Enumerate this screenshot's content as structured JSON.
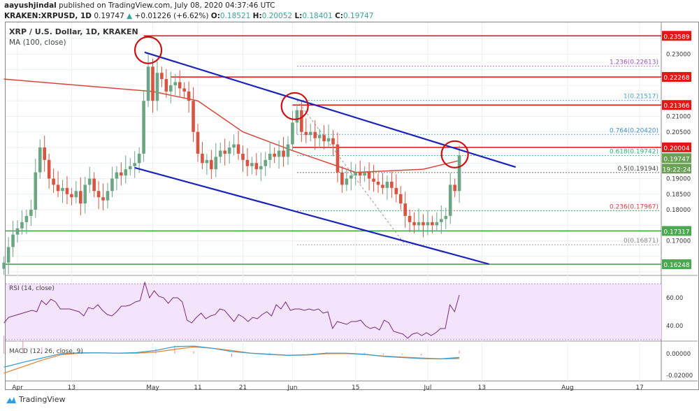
{
  "header": {
    "author": "aayushjindal",
    "published": "published on TradingView.com, July 08, 2020 04:37:46 UTC",
    "symbol": "KRAKEN:XRPUSD, 1D",
    "last": "0.19747",
    "change": "+0.01226 (+6.62%)",
    "o_label": "O:",
    "o": "0.18521",
    "h_label": "H:",
    "h": "0.20052",
    "l_label": "L:",
    "l": "0.18401",
    "c_label": "C:",
    "c": "0.19747"
  },
  "legend": {
    "title": "XRP / U.S. Dollar, 1D, KRAKEN",
    "ma": "MA (100, close)",
    "rsi": "RSI (14, close)",
    "macd": "MACD (12, 26, close, 9)"
  },
  "footer": {
    "brand": "TradingView"
  },
  "colors": {
    "up": "#6ba583",
    "down": "#d75442",
    "ma": "#d9473a",
    "trend": "#1a24b8",
    "resistance": "#e01010",
    "support": "#3e9e4a",
    "circle": "#cc1010",
    "rsi": "#7b2a7b",
    "rsi_bg": "#f3e3fb",
    "macd": "#3a9fd0",
    "signal": "#e88a3a"
  },
  "chart_data": {
    "type": "candlestick",
    "title": "XRP / U.S. Dollar, 1D, KRAKEN",
    "start_day_offset": -3,
    "day_zero": "Apr 1",
    "closes": [
      0.163,
      0.168,
      0.172,
      0.174,
      0.176,
      0.178,
      0.18,
      0.192,
      0.2,
      0.196,
      0.19,
      0.188,
      0.186,
      0.187,
      0.185,
      0.184,
      0.186,
      0.182,
      0.188,
      0.19,
      0.186,
      0.184,
      0.183,
      0.186,
      0.19,
      0.192,
      0.191,
      0.193,
      0.194,
      0.195,
      0.198,
      0.215,
      0.226,
      0.215,
      0.224,
      0.222,
      0.218,
      0.22,
      0.221,
      0.219,
      0.218,
      0.215,
      0.205,
      0.198,
      0.195,
      0.196,
      0.193,
      0.197,
      0.199,
      0.198,
      0.2,
      0.201,
      0.198,
      0.196,
      0.194,
      0.195,
      0.193,
      0.194,
      0.196,
      0.198,
      0.197,
      0.199,
      0.197,
      0.201,
      0.208,
      0.212,
      0.205,
      0.204,
      0.205,
      0.203,
      0.204,
      0.202,
      0.203,
      0.201,
      0.192,
      0.188,
      0.19,
      0.191,
      0.192,
      0.191,
      0.192,
      0.19,
      0.189,
      0.188,
      0.187,
      0.189,
      0.187,
      0.185,
      0.182,
      0.178,
      0.176,
      0.175,
      0.176,
      0.175,
      0.176,
      0.175,
      0.176,
      0.177,
      0.178,
      0.188,
      0.186,
      0.19747
    ],
    "ma100": [
      [
        -3,
        0.222
      ],
      [
        30,
        0.218
      ],
      [
        40,
        0.215
      ],
      [
        50,
        0.205
      ],
      [
        61,
        0.199
      ],
      [
        75,
        0.192
      ],
      [
        90,
        0.193
      ],
      [
        98,
        0.1958
      ]
    ],
    "price_axis": {
      "min": 0.16,
      "max": 0.24,
      "step": 0.005
    },
    "x_ticks": [
      {
        "label": "Apr",
        "day": 0
      },
      {
        "label": "13",
        "day": 12
      },
      {
        "label": "May",
        "day": 30
      },
      {
        "label": "11",
        "day": 40
      },
      {
        "label": "21",
        "day": 50
      },
      {
        "label": "Jun",
        "day": 61
      },
      {
        "label": "15",
        "day": 75
      },
      {
        "label": "Jul",
        "day": 91
      },
      {
        "label": "13",
        "day": 103
      },
      {
        "label": "Aug",
        "day": 122
      },
      {
        "label": "17",
        "day": 138
      }
    ],
    "resistance_lines": [
      {
        "price": 0.23589,
        "label": "0.23589",
        "from_day": 28
      },
      {
        "price": 0.22268,
        "label": "0.22268",
        "from_day": 34
      },
      {
        "price": 0.21366,
        "label": "0.21366",
        "from_day": 61
      },
      {
        "price": 0.20004,
        "label": "0.20004",
        "from_day": 61
      }
    ],
    "support_lines": [
      {
        "price": 0.17317,
        "label": "0.17317"
      },
      {
        "price": 0.16248,
        "label": "0.16248"
      }
    ],
    "current_price": {
      "label": "0.19747",
      "price": 0.19747,
      "countdown": "19:22:24"
    },
    "fib_levels": [
      {
        "label": "1.236(0.22613)",
        "price": 0.22613,
        "color": "#9c4fc0"
      },
      {
        "label": "1(0.21517)",
        "price": 0.21517,
        "color": "#4a9fc8"
      },
      {
        "label": "0.764(0.20420)",
        "price": 0.2042,
        "color": "#3d8fc8"
      },
      {
        "label": "0.618(0.19742)",
        "price": 0.19742,
        "color": "#2aa88f"
      },
      {
        "label": "0.5(0.19194)",
        "price": 0.19194,
        "color": "#444444"
      },
      {
        "label": "0.236(0.17967)",
        "price": 0.17967,
        "color": "#d04040"
      },
      {
        "label": "0(0.16871)",
        "price": 0.16871,
        "color": "#888888"
      }
    ],
    "trendlines": [
      {
        "from": [
          28.2,
          0.2306
        ],
        "to": [
          110.5,
          0.1937
        ]
      },
      {
        "from": [
          26,
          0.1935
        ],
        "to": [
          104.6,
          0.1625
        ]
      }
    ],
    "circles": [
      [
        29,
        0.2313
      ],
      [
        61.5,
        0.2133
      ],
      [
        97,
        0.1978
      ]
    ],
    "rsi": {
      "levels": [
        30,
        70
      ],
      "ticks": [
        "60.00",
        "40.00"
      ],
      "tick_values": [
        60,
        40
      ],
      "values": [
        42,
        46,
        47,
        48,
        49,
        50,
        51,
        50,
        58,
        55,
        59,
        57,
        52,
        52,
        52,
        51,
        50,
        47,
        53,
        52,
        55,
        51,
        48,
        47,
        50,
        54,
        54,
        55,
        57,
        58,
        71,
        60,
        65,
        61,
        60,
        56,
        60,
        60,
        57,
        44,
        42,
        46,
        49,
        45,
        47,
        48,
        52,
        51,
        47,
        43,
        48,
        46,
        43,
        46,
        45,
        48,
        50,
        47,
        55,
        52,
        57,
        51,
        52,
        52,
        51,
        52,
        51,
        52,
        49,
        50,
        38,
        43,
        42,
        41,
        43,
        43,
        44,
        40,
        38,
        39,
        37,
        44,
        42,
        36,
        35,
        34,
        31,
        34,
        35,
        33,
        35,
        33,
        35,
        38,
        38,
        55,
        50,
        62
      ]
    },
    "macd": {
      "ticks": [
        "0.00000",
        "-0.02000"
      ],
      "tick_values": [
        0,
        -0.02
      ],
      "macd": [
        -0.0125,
        -0.008,
        -0.004,
        0,
        0.0008,
        0.0008,
        0.0005,
        0.001,
        0.003,
        0.0065,
        0.007,
        0.005,
        0.002,
        0.0005,
        -0.0005,
        -0.0015,
        -0.001,
        0.0005,
        0.0005,
        -0.0005,
        -0.0025,
        -0.0035,
        -0.0045,
        -0.0048,
        -0.0035
      ],
      "signal": [
        -0.018,
        -0.012,
        -0.006,
        -0.001,
        0.0005,
        0.0008,
        0.0005,
        0.0005,
        0.0015,
        0.004,
        0.0062,
        0.005,
        0.003,
        0.0005,
        -0.0008,
        -0.0015,
        -0.0012,
        0,
        0.0002,
        -0.0008,
        -0.0022,
        -0.0032,
        -0.004,
        -0.0048,
        -0.0045
      ]
    }
  }
}
